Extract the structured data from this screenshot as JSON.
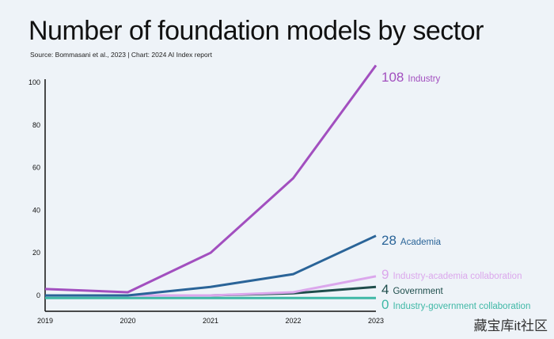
{
  "watermark": "藏宝库it社区",
  "chart_data": {
    "type": "line",
    "title": "Number of foundation models by sector",
    "source": "Source: Bommasani et al., 2023 | Chart: 2024 AI Index report",
    "xlabel": "",
    "ylabel": "",
    "x": [
      "2019",
      "2020",
      "2021",
      "2022",
      "2023"
    ],
    "yticks": [
      "0",
      "20",
      "40",
      "60",
      "80",
      "100"
    ],
    "ylim": [
      -15,
      100
    ],
    "grid": false,
    "series": [
      {
        "name": "Industry",
        "color": "#a24fbf",
        "values": [
          3,
          1.5,
          20,
          55,
          108
        ],
        "end_label": "108"
      },
      {
        "name": "Academia",
        "color": "#2a6498",
        "values": [
          0,
          0,
          4,
          10,
          28
        ],
        "end_label": "28"
      },
      {
        "name": "Industry-academia collaboration",
        "color": "#dba7ec",
        "values": [
          0,
          0,
          0,
          1.5,
          9
        ],
        "end_label": "9"
      },
      {
        "name": "Government",
        "color": "#1e4d4b",
        "values": [
          0,
          0,
          0,
          1,
          4
        ],
        "end_label": "4"
      },
      {
        "name": "Industry-government collaboration",
        "color": "#3fb8a6",
        "values": [
          0,
          0,
          0,
          0,
          0
        ],
        "end_label": "0"
      }
    ]
  }
}
